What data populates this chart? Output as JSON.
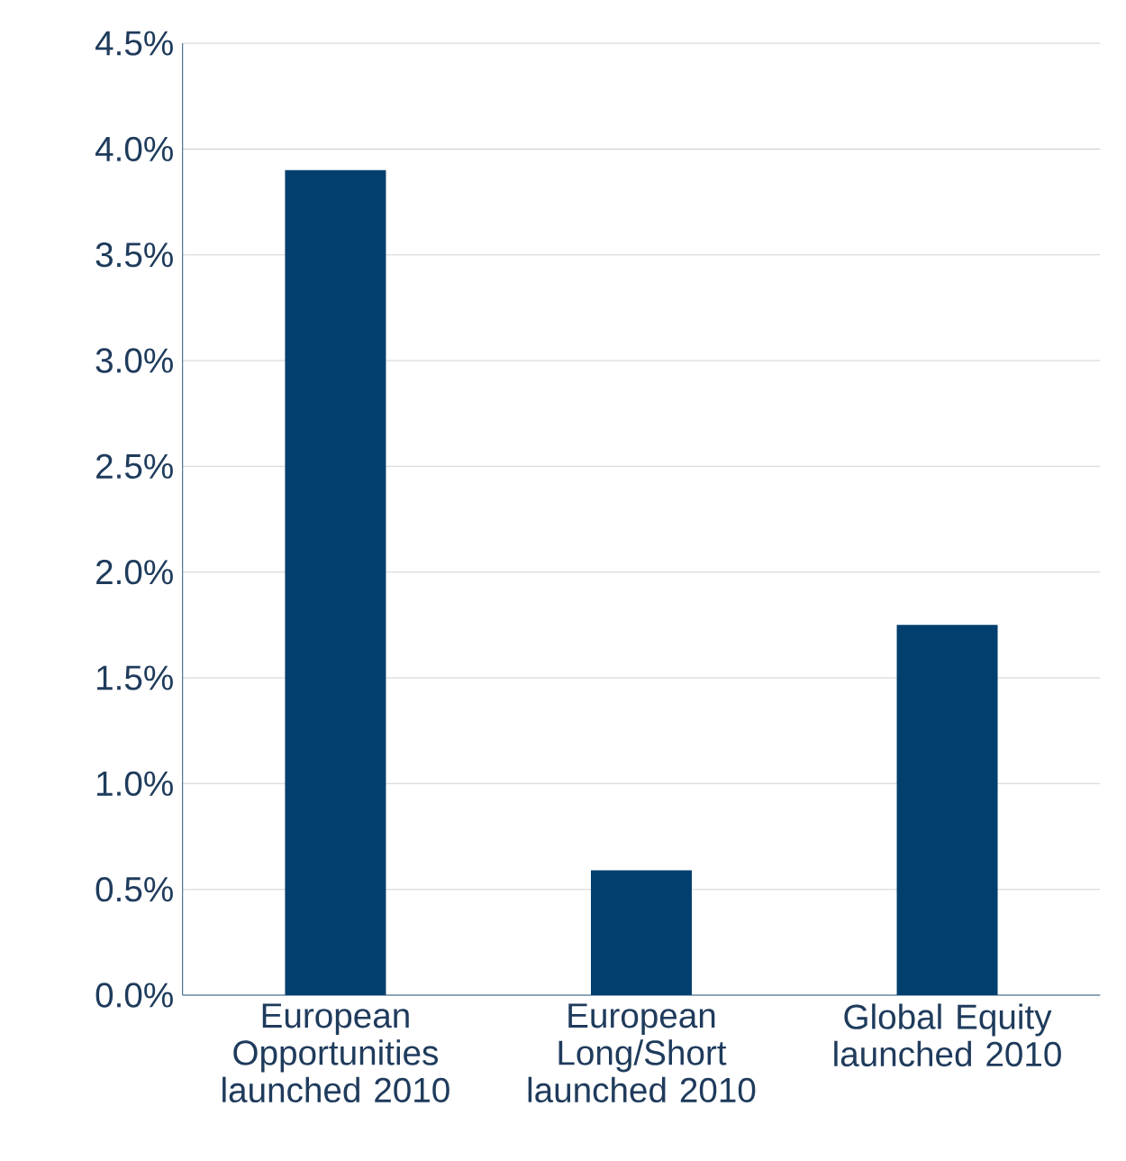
{
  "chart_data": {
    "type": "bar",
    "categories": [
      "European Opportunities launched 2010",
      "European Long/Short launched 2010",
      "Global Equity launched 2010"
    ],
    "values": [
      3.9,
      0.59,
      1.75
    ],
    "color": "#003f6e",
    "ylim": [
      0,
      4.5
    ],
    "yticks": [
      {
        "value": 0,
        "label": "0.0%"
      },
      {
        "value": 0.5,
        "label": "0.5%"
      },
      {
        "value": 1,
        "label": "1.0%"
      },
      {
        "value": 1.5,
        "label": "1.5%"
      },
      {
        "value": 2,
        "label": "2.0%"
      },
      {
        "value": 2.5,
        "label": "2.5%"
      },
      {
        "value": 3,
        "label": "3.0%"
      },
      {
        "value": 3.5,
        "label": "3.5%"
      },
      {
        "value": 4,
        "label": "4.0%"
      },
      {
        "value": 4.5,
        "label": "4.5%"
      }
    ],
    "grid": "y"
  }
}
